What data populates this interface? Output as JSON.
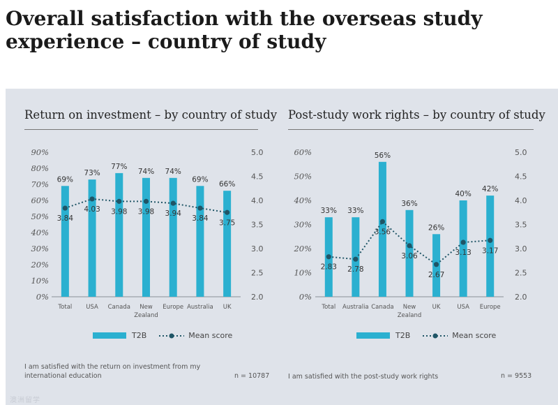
{
  "page": {
    "title": "Overall satisfaction with the overseas study experience – country of study",
    "watermark": "澳洲留学"
  },
  "charts": [
    {
      "title": "Return on investment – by country of study",
      "legend_bar": "T2B",
      "legend_line": "Mean score",
      "note": "I am satisfied with the return on investment from my international education",
      "n": "n = 10787"
    },
    {
      "title": "Post-study work rights – by country of study",
      "legend_bar": "T2B",
      "legend_line": "Mean score",
      "note": "I am satisfied with the post-study work rights",
      "n": "n = 9553"
    }
  ],
  "colors": {
    "bar": "#2bb0d0",
    "line": "#1f5566",
    "panel": "#dfe3ea"
  },
  "chart_data": [
    {
      "type": "bar",
      "title": "Return on investment – by country of study",
      "categories": [
        "Total",
        "USA",
        "Canada",
        "New Zealand",
        "Europe",
        "Australia",
        "UK"
      ],
      "category_lines": [
        [
          "Total"
        ],
        [
          "USA"
        ],
        [
          "Canada"
        ],
        [
          "New",
          "Zealand"
        ],
        [
          "Europe"
        ],
        [
          "Australia"
        ],
        [
          "UK"
        ]
      ],
      "series": [
        {
          "name": "T2B",
          "type": "bar",
          "axis": "left",
          "values": [
            69,
            73,
            77,
            74,
            74,
            69,
            66
          ],
          "labels": [
            "69%",
            "73%",
            "77%",
            "74%",
            "74%",
            "69%",
            "66%"
          ]
        },
        {
          "name": "Mean score",
          "type": "line",
          "axis": "right",
          "values": [
            3.84,
            4.03,
            3.98,
            3.98,
            3.94,
            3.84,
            3.75
          ],
          "labels": [
            "3.84",
            "4.03",
            "3.98",
            "3.98",
            "3.94",
            "3.84",
            "3.75"
          ]
        }
      ],
      "ylim_left": [
        0,
        90
      ],
      "yticks_left": [
        "0%",
        "10%",
        "20%",
        "30%",
        "40%",
        "50%",
        "60%",
        "70%",
        "80%",
        "90%"
      ],
      "ylim_right": [
        2.0,
        5.0
      ],
      "yticks_right": [
        "2.0",
        "2.5",
        "3.0",
        "3.5",
        "4.0",
        "4.5",
        "5.0"
      ],
      "legend": "bottom",
      "grid": false
    },
    {
      "type": "bar",
      "title": "Post-study work rights – by country of study",
      "categories": [
        "Total",
        "Australia",
        "Canada",
        "New Zealand",
        "UK",
        "USA",
        "Europe"
      ],
      "category_lines": [
        [
          "Total"
        ],
        [
          "Australia"
        ],
        [
          "Canada"
        ],
        [
          "New",
          "Zealand"
        ],
        [
          "UK"
        ],
        [
          "USA"
        ],
        [
          "Europe"
        ]
      ],
      "series": [
        {
          "name": "T2B",
          "type": "bar",
          "axis": "left",
          "values": [
            33,
            33,
            56,
            36,
            26,
            40,
            42
          ],
          "labels": [
            "33%",
            "33%",
            "56%",
            "36%",
            "26%",
            "40%",
            "42%"
          ]
        },
        {
          "name": "Mean score",
          "type": "line",
          "axis": "right",
          "values": [
            2.83,
            2.78,
            3.56,
            3.06,
            2.67,
            3.13,
            3.17
          ],
          "labels": [
            "2.83",
            "2.78",
            "3.56",
            "3.06",
            "2.67",
            "3.13",
            "3.17"
          ]
        }
      ],
      "ylim_left": [
        0,
        60
      ],
      "yticks_left": [
        "0%",
        "10%",
        "20%",
        "30%",
        "40%",
        "50%",
        "60%"
      ],
      "ylim_right": [
        2.0,
        5.0
      ],
      "yticks_right": [
        "2.0",
        "2.5",
        "3.0",
        "3.5",
        "4.0",
        "4.5",
        "5.0"
      ],
      "legend": "bottom",
      "grid": false
    }
  ]
}
